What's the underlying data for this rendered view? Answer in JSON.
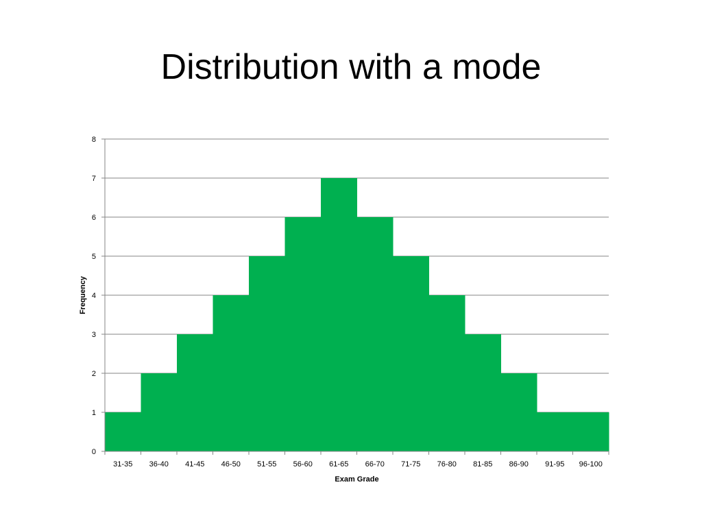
{
  "slide": {
    "title": "Distribution with a mode"
  },
  "chart_data": {
    "type": "bar",
    "categories": [
      "31-35",
      "36-40",
      "41-45",
      "46-50",
      "51-55",
      "56-60",
      "61-65",
      "66-70",
      "71-75",
      "76-80",
      "81-85",
      "86-90",
      "91-95",
      "96-100"
    ],
    "values": [
      1,
      2,
      3,
      4,
      5,
      6,
      7,
      6,
      5,
      4,
      3,
      2,
      1,
      1
    ],
    "title": "",
    "xlabel": "Exam Grade",
    "ylabel": "Frequency",
    "ylim": [
      0,
      8
    ],
    "yticks": [
      0,
      1,
      2,
      3,
      4,
      5,
      6,
      7,
      8
    ],
    "grid": true,
    "bar_color": "#00B050",
    "gridline_color": "#868686",
    "axis_color": "#868686"
  }
}
